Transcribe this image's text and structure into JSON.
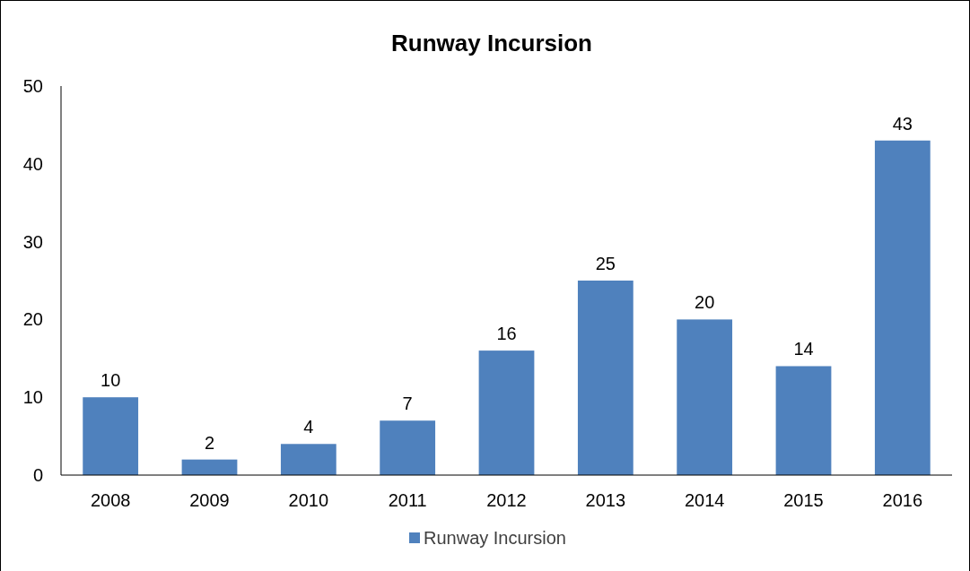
{
  "chart_data": {
    "type": "bar",
    "title": "Runway Incursion",
    "categories": [
      "2008",
      "2009",
      "2010",
      "2011",
      "2012",
      "2013",
      "2014",
      "2015",
      "2016"
    ],
    "series": [
      {
        "name": "Runway Incursion",
        "color": "#4f81bd",
        "values": [
          10,
          2,
          4,
          7,
          16,
          25,
          20,
          14,
          43
        ]
      }
    ],
    "ylim": [
      0,
      50
    ],
    "yticks": [
      0,
      10,
      20,
      30,
      40,
      50
    ],
    "data_labels": true,
    "legend": "bottom",
    "grid": false
  }
}
